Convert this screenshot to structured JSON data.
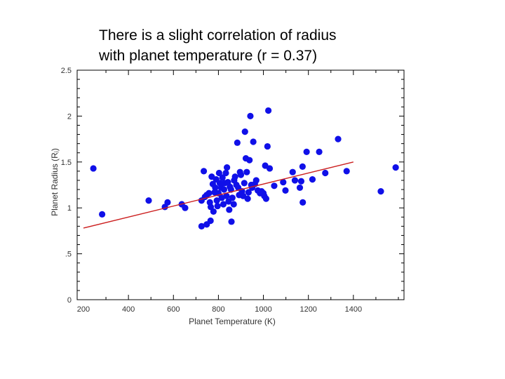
{
  "title": "There is a slight correlation of radius\nwith planet temperature (r = 0.37)",
  "chart_data": {
    "type": "scatter",
    "title": "There is a slight correlation of radius with planet temperature (r = 0.37)",
    "xlabel": "Planet Temperature (K)",
    "ylabel": "Planet Radius (Rⱼ)",
    "xlim": [
      200,
      1700
    ],
    "ylim": [
      0,
      2.5
    ],
    "xticks": [
      200,
      400,
      600,
      800,
      1000,
      1200,
      1400
    ],
    "xtick_labels": [
      "200",
      "400",
      "600",
      "800",
      "1000",
      "1200",
      "1400"
    ],
    "yticks": [
      0,
      0.5,
      1,
      1.5,
      2,
      2.5
    ],
    "ytick_labels": [
      "0",
      ".5",
      "1",
      "1.5",
      "2",
      "2.5"
    ],
    "grid": false,
    "colors": {
      "points": "#1010e8",
      "fit": "#cc1f1f",
      "axes": "#000000"
    },
    "fit_line": {
      "x": [
        200,
        1400
      ],
      "y": [
        0.78,
        1.5
      ]
    },
    "points": [
      [
        244,
        1.43
      ],
      [
        283,
        0.93
      ],
      [
        490,
        1.08
      ],
      [
        574,
        1.06
      ],
      [
        562,
        1.01
      ],
      [
        637,
        1.04
      ],
      [
        652,
        1.0
      ],
      [
        725,
        1.08
      ],
      [
        735,
        1.4
      ],
      [
        740,
        1.12
      ],
      [
        748,
        1.14
      ],
      [
        725,
        0.8
      ],
      [
        748,
        0.82
      ],
      [
        758,
        1.16
      ],
      [
        762,
        1.06
      ],
      [
        766,
        1.01
      ],
      [
        770,
        1.34
      ],
      [
        775,
        1.26
      ],
      [
        765,
        0.86
      ],
      [
        778,
        0.96
      ],
      [
        783,
        1.17
      ],
      [
        786,
        1.22
      ],
      [
        790,
        1.31
      ],
      [
        793,
        1.08
      ],
      [
        796,
        1.02
      ],
      [
        800,
        1.16
      ],
      [
        803,
        1.38
      ],
      [
        806,
        1.27
      ],
      [
        812,
        1.22
      ],
      [
        815,
        1.11
      ],
      [
        818,
        1.33
      ],
      [
        822,
        1.04
      ],
      [
        825,
        1.2
      ],
      [
        828,
        1.27
      ],
      [
        833,
        1.38
      ],
      [
        836,
        1.13
      ],
      [
        838,
        1.44
      ],
      [
        842,
        1.28
      ],
      [
        845,
        1.07
      ],
      [
        848,
        0.98
      ],
      [
        851,
        1.23
      ],
      [
        856,
        1.2
      ],
      [
        858,
        0.85
      ],
      [
        862,
        1.11
      ],
      [
        868,
        1.04
      ],
      [
        870,
        1.3
      ],
      [
        874,
        1.34
      ],
      [
        880,
        1.25
      ],
      [
        884,
        1.71
      ],
      [
        888,
        1.22
      ],
      [
        892,
        1.14
      ],
      [
        896,
        1.39
      ],
      [
        900,
        1.36
      ],
      [
        905,
        1.18
      ],
      [
        910,
        1.13
      ],
      [
        915,
        1.27
      ],
      [
        918,
        1.83
      ],
      [
        922,
        1.54
      ],
      [
        926,
        1.39
      ],
      [
        930,
        1.1
      ],
      [
        934,
        1.17
      ],
      [
        938,
        1.52
      ],
      [
        942,
        2.0
      ],
      [
        946,
        1.25
      ],
      [
        950,
        1.22
      ],
      [
        955,
        1.72
      ],
      [
        962,
        1.26
      ],
      [
        968,
        1.3
      ],
      [
        975,
        1.19
      ],
      [
        985,
        1.16
      ],
      [
        992,
        1.18
      ],
      [
        1000,
        1.16
      ],
      [
        1004,
        1.13
      ],
      [
        1008,
        1.46
      ],
      [
        1012,
        1.1
      ],
      [
        1018,
        1.67
      ],
      [
        1022,
        2.06
      ],
      [
        1028,
        1.43
      ],
      [
        1048,
        1.24
      ],
      [
        1088,
        1.28
      ],
      [
        1098,
        1.19
      ],
      [
        1130,
        1.39
      ],
      [
        1140,
        1.3
      ],
      [
        1162,
        1.22
      ],
      [
        1168,
        1.29
      ],
      [
        1174,
        1.45
      ],
      [
        1175,
        1.06
      ],
      [
        1192,
        1.61
      ],
      [
        1218,
        1.31
      ],
      [
        1248,
        1.61
      ],
      [
        1275,
        1.38
      ],
      [
        1332,
        1.75
      ],
      [
        1370,
        1.4
      ],
      [
        1522,
        1.18
      ],
      [
        1588,
        1.44
      ]
    ]
  }
}
